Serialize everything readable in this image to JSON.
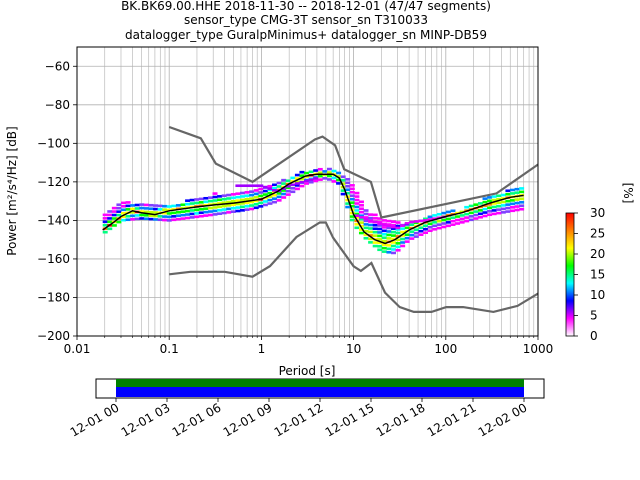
{
  "chart_data": {
    "type": "heatmap",
    "title_lines": [
      "BK.BK69.00.HHE   2018-11-30 -- 2018-12-01  (47/47 segments)",
      "sensor_type CMG-3T sensor_sn T310033",
      "datalogger_type GuralpMinimus+ datalogger_sn MINP-DB59"
    ],
    "xlabel": "Period [s]",
    "ylabel": "Power [m²/s⁴/Hz] [dB]",
    "x_scale": "log",
    "xlim": [
      0.01,
      1000
    ],
    "ylim": [
      -200,
      -50
    ],
    "x_ticks": [
      0.01,
      0.1,
      1,
      10,
      100,
      1000
    ],
    "x_tick_labels": [
      "0.01",
      "0.1",
      "1",
      "10",
      "100",
      "1000"
    ],
    "y_ticks": [
      -200,
      -180,
      -160,
      -140,
      -120,
      -100,
      -80,
      -60
    ],
    "y_tick_labels": [
      "−200",
      "−180",
      "−160",
      "−140",
      "−120",
      "−100",
      "−80",
      "−60"
    ],
    "grid": true,
    "colorbar": {
      "label": "[%]",
      "range": [
        0,
        30
      ],
      "ticks": [
        0,
        5,
        10,
        15,
        20,
        25,
        30
      ],
      "colors": [
        "#ffffff",
        "#ff00ff",
        "#0000ff",
        "#00ffff",
        "#00ff00",
        "#ffff00",
        "#ff8000",
        "#ff0000"
      ]
    },
    "model_curves": {
      "color": "#666666",
      "nhnm": [
        [
          0.1,
          -91.5
        ],
        [
          0.22,
          -97.4
        ],
        [
          0.32,
          -110.5
        ],
        [
          0.8,
          -120
        ],
        [
          3.8,
          -98
        ],
        [
          4.6,
          -96.5
        ],
        [
          6.3,
          -101
        ],
        [
          7.9,
          -113.5
        ],
        [
          15.4,
          -120
        ],
        [
          20,
          -138.5
        ],
        [
          354.8,
          -126
        ],
        [
          1000,
          -111
        ]
      ],
      "nlnm": [
        [
          0.1,
          -168
        ],
        [
          0.17,
          -166.7
        ],
        [
          0.4,
          -166.7
        ],
        [
          0.8,
          -169.2
        ],
        [
          1.24,
          -163.7
        ],
        [
          2.4,
          -148.6
        ],
        [
          4.3,
          -141.1
        ],
        [
          5,
          -141.1
        ],
        [
          6,
          -149
        ],
        [
          10,
          -163.8
        ],
        [
          12,
          -166.2
        ],
        [
          15.6,
          -162.1
        ],
        [
          21.9,
          -177.5
        ],
        [
          31.6,
          -185
        ],
        [
          45,
          -187.5
        ],
        [
          70,
          -187.5
        ],
        [
          101,
          -185
        ],
        [
          154,
          -185
        ],
        [
          328,
          -187.5
        ],
        [
          600,
          -184.4
        ],
        [
          1000,
          -178
        ]
      ]
    },
    "median_curve": [
      [
        0.019,
        -145
      ],
      [
        0.025,
        -141
      ],
      [
        0.03,
        -138
      ],
      [
        0.04,
        -135
      ],
      [
        0.05,
        -136
      ],
      [
        0.07,
        -137
      ],
      [
        0.1,
        -135
      ],
      [
        0.2,
        -133
      ],
      [
        0.3,
        -132
      ],
      [
        0.5,
        -131
      ],
      [
        1,
        -129
      ],
      [
        1.5,
        -125
      ],
      [
        2,
        -121
      ],
      [
        3,
        -117
      ],
      [
        4,
        -116
      ],
      [
        5,
        -116
      ],
      [
        6,
        -116
      ],
      [
        7,
        -118
      ],
      [
        8,
        -124
      ],
      [
        10,
        -137
      ],
      [
        13,
        -146
      ],
      [
        17,
        -150
      ],
      [
        22,
        -152
      ],
      [
        28,
        -150
      ],
      [
        40,
        -145
      ],
      [
        60,
        -141
      ],
      [
        100,
        -138
      ],
      [
        150,
        -136
      ],
      [
        200,
        -134
      ],
      [
        300,
        -131
      ],
      [
        500,
        -128
      ],
      [
        700,
        -127
      ]
    ],
    "spread_low": [
      [
        0.019,
        -147
      ],
      [
        0.03,
        -140
      ],
      [
        0.05,
        -139
      ],
      [
        0.1,
        -140
      ],
      [
        0.3,
        -137
      ],
      [
        0.8,
        -134
      ],
      [
        1.5,
        -130
      ],
      [
        3,
        -121
      ],
      [
        5,
        -118
      ],
      [
        7,
        -121
      ],
      [
        10,
        -142
      ],
      [
        14,
        -150
      ],
      [
        20,
        -156
      ],
      [
        28,
        -157
      ],
      [
        40,
        -150
      ],
      [
        70,
        -145
      ],
      [
        150,
        -141
      ],
      [
        300,
        -137
      ],
      [
        700,
        -134
      ]
    ],
    "spread_high": [
      [
        0.019,
        -138
      ],
      [
        0.03,
        -130
      ],
      [
        0.05,
        -131
      ],
      [
        0.1,
        -132
      ],
      [
        0.3,
        -126
      ],
      [
        0.8,
        -125
      ],
      [
        1.5,
        -120
      ],
      [
        3,
        -114
      ],
      [
        5,
        -113
      ],
      [
        7,
        -114
      ],
      [
        10,
        -122
      ],
      [
        14,
        -135
      ],
      [
        20,
        -138
      ],
      [
        28,
        -141
      ],
      [
        40,
        -141
      ],
      [
        70,
        -137
      ],
      [
        150,
        -134
      ],
      [
        300,
        -127
      ],
      [
        700,
        -122
      ]
    ],
    "outlier_low": [
      [
        0.5,
        -122
      ],
      [
        1,
        -122
      ],
      [
        1.5,
        -125
      ],
      [
        2,
        -122
      ],
      [
        4,
        -118
      ]
    ],
    "outlier_high_band": [
      [
        10,
        -137
      ],
      [
        15,
        -140
      ],
      [
        20,
        -142
      ],
      [
        25,
        -143
      ],
      [
        30,
        -144
      ],
      [
        40,
        -141
      ],
      [
        60,
        -140
      ],
      [
        100,
        -138
      ]
    ],
    "coverage": {
      "tick_labels": [
        "12-01 00",
        "12-01 03",
        "12-01 06",
        "12-01 09",
        "12-01 12",
        "12-01 15",
        "12-01 18",
        "12-01 21",
        "12-02 00"
      ],
      "colors": [
        "#0000ff",
        "#008000"
      ]
    }
  }
}
